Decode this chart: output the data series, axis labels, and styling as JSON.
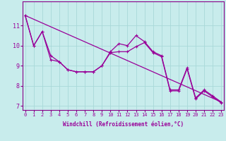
{
  "xlabel": "Windchill (Refroidissement éolien,°C)",
  "background_color": "#c8ecec",
  "grid_color": "#a8d8d8",
  "line_color": "#990099",
  "spine_color": "#880088",
  "x_hours": [
    0,
    1,
    2,
    3,
    4,
    5,
    6,
    7,
    8,
    9,
    10,
    11,
    12,
    13,
    14,
    15,
    16,
    17,
    18,
    19,
    20,
    21,
    22,
    23
  ],
  "series1": [
    11.5,
    10.0,
    10.7,
    9.5,
    9.2,
    8.8,
    8.7,
    8.7,
    8.7,
    9.0,
    9.7,
    10.1,
    10.0,
    10.5,
    10.2,
    9.7,
    9.5,
    7.8,
    7.8,
    8.9,
    7.4,
    7.8,
    7.5,
    7.2
  ],
  "series2": [
    11.5,
    10.0,
    10.7,
    9.3,
    9.2,
    8.8,
    8.7,
    8.7,
    8.7,
    9.0,
    9.65,
    9.7,
    9.7,
    9.95,
    10.15,
    9.65,
    9.45,
    7.75,
    7.75,
    8.85,
    7.35,
    7.75,
    7.45,
    7.15
  ],
  "trend_x": [
    0,
    23
  ],
  "trend_y": [
    11.5,
    7.2
  ],
  "ylim": [
    6.8,
    12.2
  ],
  "xlim": [
    -0.3,
    23.3
  ],
  "yticks": [
    7,
    8,
    9,
    10,
    11
  ],
  "xticks": [
    0,
    1,
    2,
    3,
    4,
    5,
    6,
    7,
    8,
    9,
    10,
    11,
    12,
    13,
    14,
    15,
    16,
    17,
    18,
    19,
    20,
    21,
    22,
    23
  ],
  "tick_fontsize": 5.0,
  "xlabel_fontsize": 5.5
}
